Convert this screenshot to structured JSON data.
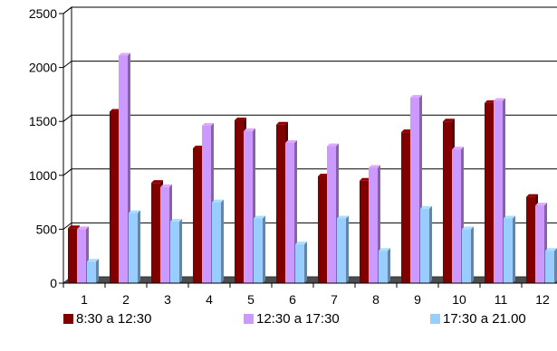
{
  "chart_data": {
    "type": "bar",
    "style": "3d-clustered-column",
    "categories": [
      "1",
      "2",
      "3",
      "4",
      "5",
      "6",
      "7",
      "8",
      "9",
      "10",
      "11",
      "12"
    ],
    "series": [
      {
        "name": "8:30 a 12:30",
        "color": "#800000",
        "values": [
          510,
          1590,
          930,
          1250,
          1510,
          1470,
          990,
          950,
          1400,
          1500,
          1670,
          800
        ]
      },
      {
        "name": "12:30 a 17:30",
        "color": "#cc99ff",
        "values": [
          500,
          2110,
          890,
          1460,
          1410,
          1300,
          1270,
          1070,
          1720,
          1240,
          1690,
          720
        ]
      },
      {
        "name": "17:30 a 21.00",
        "color": "#99ccff",
        "values": [
          200,
          650,
          570,
          750,
          600,
          360,
          600,
          300,
          690,
          500,
          600,
          300
        ]
      }
    ],
    "yticks": [
      "0",
      "500",
      "1000",
      "1500",
      "2000",
      "2500"
    ],
    "ylim": [
      0,
      2500
    ],
    "grid": true,
    "legend_position": "bottom"
  }
}
